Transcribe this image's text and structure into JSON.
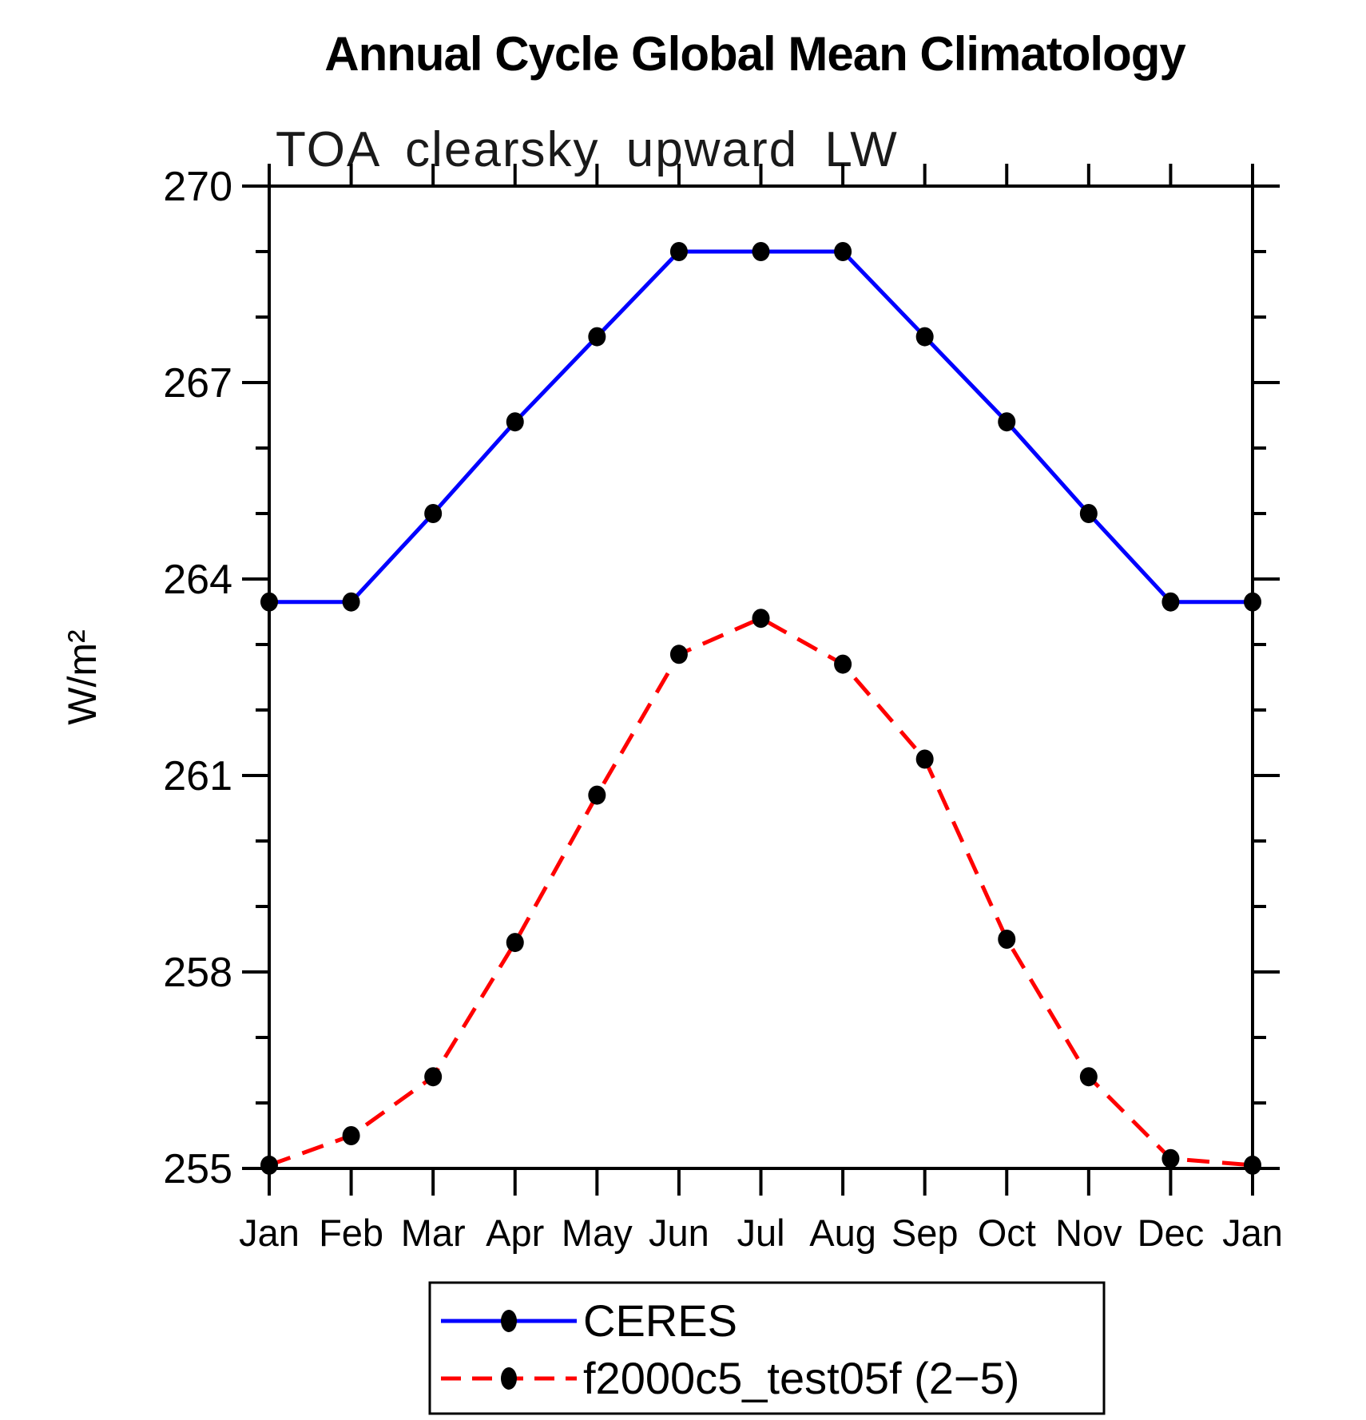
{
  "title": "Annual Cycle Global Mean Climatology",
  "subtitle": "TOA clearsky upward LW",
  "chart_data": {
    "type": "line",
    "title": "Annual Cycle Global Mean Climatology",
    "subtitle": "TOA clearsky upward LW",
    "xlabel": "",
    "ylabel": "W/m²",
    "categories": [
      "Jan",
      "Feb",
      "Mar",
      "Apr",
      "May",
      "Jun",
      "Jul",
      "Aug",
      "Sep",
      "Oct",
      "Nov",
      "Dec",
      "Jan"
    ],
    "ylim": [
      255,
      270
    ],
    "ytick_major": [
      255,
      258,
      261,
      264,
      267,
      270
    ],
    "ytick_minor_step": 1,
    "grid": false,
    "legend_position": "bottom-left-box",
    "marker_color": "#000000",
    "frame_color": "#000000",
    "series": [
      {
        "name": "CERES",
        "color": "#0000ff",
        "line_style": "solid",
        "marker": "filled-circle",
        "values": [
          263.65,
          263.65,
          265.0,
          266.4,
          267.7,
          269.0,
          269.0,
          269.0,
          267.7,
          266.4,
          265.0,
          263.65,
          263.65
        ]
      },
      {
        "name": "f2000c5_test05f (2−5)",
        "color": "#ff0000",
        "line_style": "dashed",
        "marker": "filled-circle",
        "values": [
          255.05,
          255.5,
          256.4,
          258.45,
          260.7,
          262.85,
          263.4,
          262.7,
          261.25,
          258.5,
          256.4,
          255.15,
          255.05
        ]
      }
    ]
  }
}
